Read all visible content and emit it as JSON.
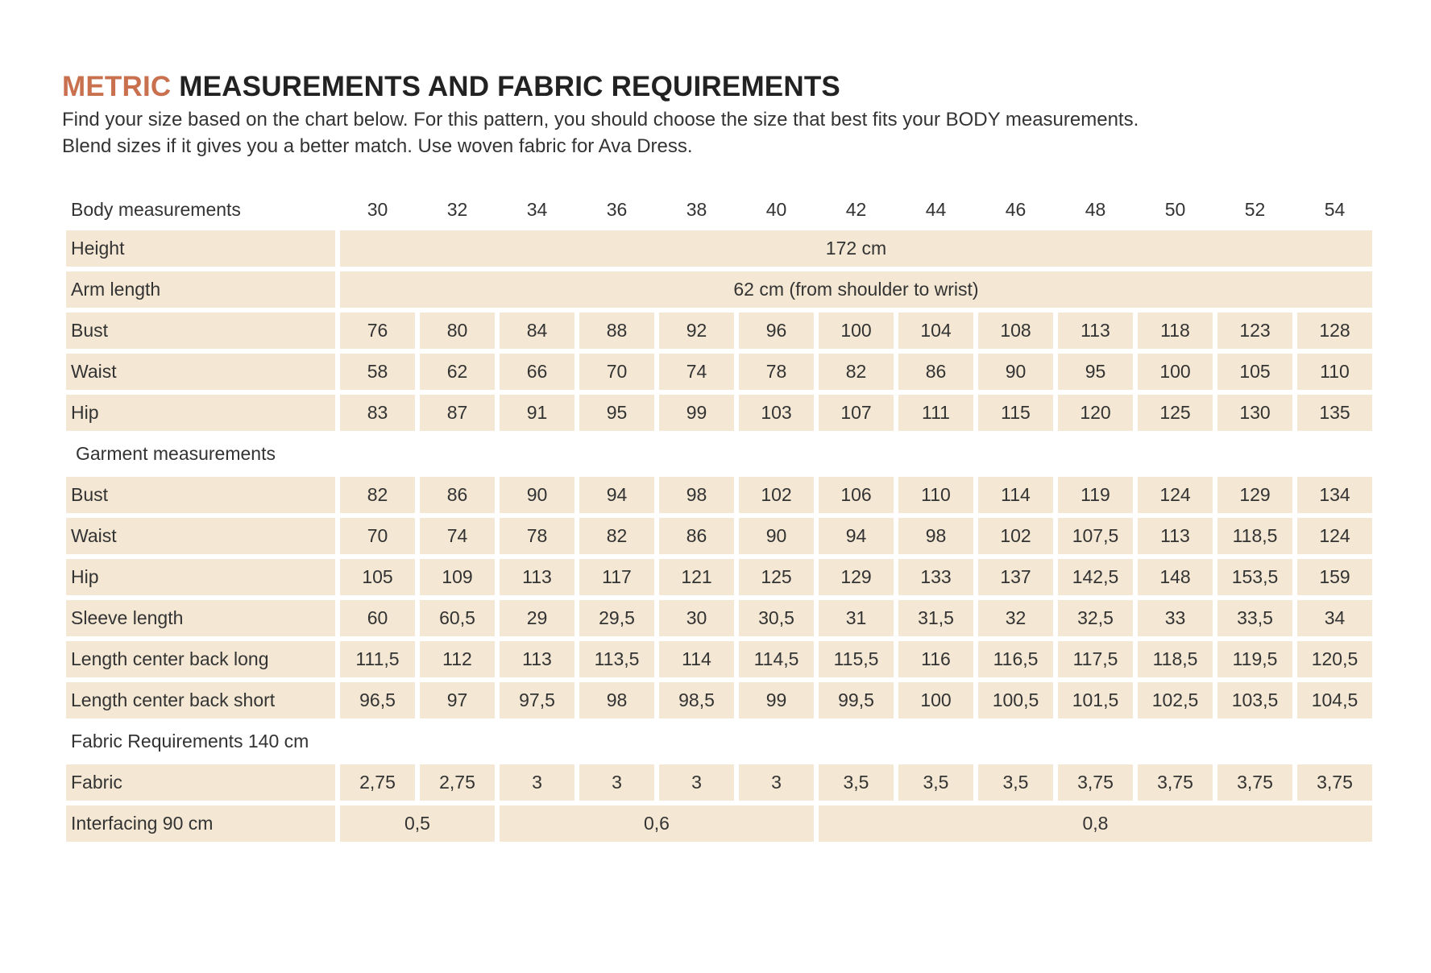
{
  "heading": {
    "accent": "METRIC",
    "rest": " MEASUREMENTS AND FABRIC REQUIREMENTS"
  },
  "intro": {
    "line1": "Find your size based on the chart below. For this pattern, you should choose the size that best fits your BODY measurements.",
    "line2": "Blend sizes if it gives you a better match. Use woven fabric for Ava Dress."
  },
  "sizes": [
    "30",
    "32",
    "34",
    "36",
    "38",
    "40",
    "42",
    "44",
    "46",
    "48",
    "50",
    "52",
    "54"
  ],
  "body": {
    "title": "Body measurements",
    "height": {
      "label": "Height",
      "value": "172 cm"
    },
    "arm": {
      "label": "Arm length",
      "value": "62 cm (from shoulder to wrist)"
    },
    "rows": [
      {
        "label": "Bust",
        "values": [
          "76",
          "80",
          "84",
          "88",
          "92",
          "96",
          "100",
          "104",
          "108",
          "113",
          "118",
          "123",
          "128"
        ]
      },
      {
        "label": "Waist",
        "values": [
          "58",
          "62",
          "66",
          "70",
          "74",
          "78",
          "82",
          "86",
          "90",
          "95",
          "100",
          "105",
          "110"
        ]
      },
      {
        "label": "Hip",
        "values": [
          "83",
          "87",
          "91",
          "95",
          "99",
          "103",
          "107",
          "111",
          "115",
          "120",
          "125",
          "130",
          "135"
        ]
      }
    ]
  },
  "garment": {
    "title": "Garment measurements",
    "rows": [
      {
        "label": "Bust",
        "values": [
          "82",
          "86",
          "90",
          "94",
          "98",
          "102",
          "106",
          "110",
          "114",
          "119",
          "124",
          "129",
          "134"
        ]
      },
      {
        "label": "Waist",
        "values": [
          "70",
          "74",
          "78",
          "82",
          "86",
          "90",
          "94",
          "98",
          "102",
          "107,5",
          "113",
          "118,5",
          "124"
        ]
      },
      {
        "label": "Hip",
        "values": [
          "105",
          "109",
          "113",
          "117",
          "121",
          "125",
          "129",
          "133",
          "137",
          "142,5",
          "148",
          "153,5",
          "159"
        ]
      },
      {
        "label": "Sleeve length",
        "values": [
          "60",
          "60,5",
          "29",
          "29,5",
          "30",
          "30,5",
          "31",
          "31,5",
          "32",
          "32,5",
          "33",
          "33,5",
          "34"
        ]
      },
      {
        "label": "Length center back long",
        "values": [
          "111,5",
          "112",
          "113",
          "113,5",
          "114",
          "114,5",
          "115,5",
          "116",
          "116,5",
          "117,5",
          "118,5",
          "119,5",
          "120,5"
        ]
      },
      {
        "label": "Length center back short",
        "values": [
          "96,5",
          "97",
          "97,5",
          "98",
          "98,5",
          "99",
          "99,5",
          "100",
          "100,5",
          "101,5",
          "102,5",
          "103,5",
          "104,5"
        ]
      }
    ]
  },
  "fabric": {
    "title": "Fabric Requirements 140 cm",
    "row": {
      "label": "Fabric",
      "values": [
        "2,75",
        "2,75",
        "3",
        "3",
        "3",
        "3",
        "3,5",
        "3,5",
        "3,5",
        "3,75",
        "3,75",
        "3,75",
        "3,75"
      ]
    },
    "interfacing": {
      "label": "Interfacing 90 cm",
      "group1": "0,5",
      "group2": "0,6",
      "group3": "0,8"
    }
  },
  "colors": {
    "accent": "#c9714f",
    "cell": "#f4e8d4"
  }
}
